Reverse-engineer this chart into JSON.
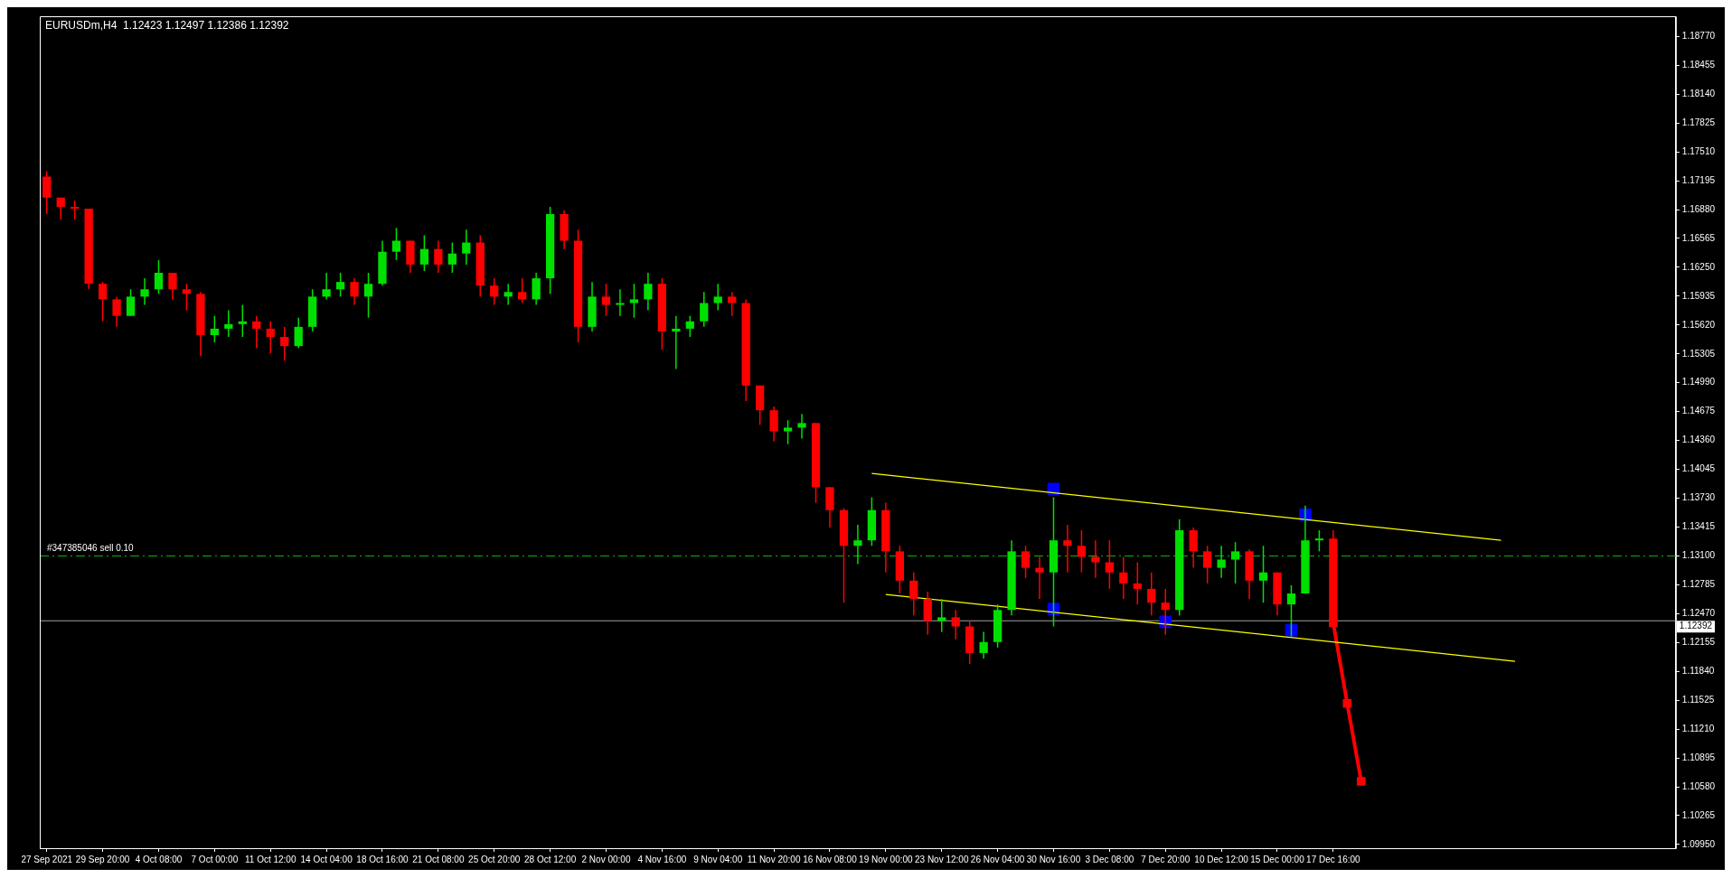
{
  "chart_data": {
    "type": "candlestick",
    "title": "EURUSDm,H4  1.12423 1.12497 1.12386 1.12392",
    "categories": [
      "27 Sep 2021",
      null,
      null,
      null,
      "29 Sep 20:00",
      null,
      null,
      null,
      "4 Oct 08:00",
      null,
      null,
      null,
      "7 Oct 00:00",
      null,
      null,
      null,
      "11 Oct 12:00",
      null,
      null,
      null,
      "14 Oct 04:00",
      null,
      null,
      null,
      "18 Oct 16:00",
      null,
      null,
      null,
      "21 Oct 08:00",
      null,
      null,
      null,
      "25 Oct 20:00",
      null,
      null,
      null,
      "28 Oct 12:00",
      null,
      null,
      null,
      "2 Nov 00:00",
      null,
      null,
      null,
      "4 Nov 16:00",
      null,
      null,
      null,
      "9 Nov 04:00",
      null,
      null,
      null,
      "11 Nov 20:00",
      null,
      null,
      null,
      "16 Nov 08:00",
      null,
      null,
      null,
      "19 Nov 00:00",
      null,
      null,
      null,
      "23 Nov 12:00",
      null,
      null,
      null,
      "26 Nov 04:00",
      null,
      null,
      null,
      "30 Nov 16:00",
      null,
      null,
      null,
      "3 Dec 08:00",
      null,
      null,
      null,
      "7 Dec 20:00",
      null,
      null,
      null,
      "10 Dec 12:00",
      null,
      null,
      null,
      "15 Dec 00:00",
      null,
      null,
      null,
      "17 Dec 16:00",
      null,
      null,
      null,
      null,
      null,
      null,
      null,
      null,
      null,
      null,
      null,
      null,
      null,
      null,
      null,
      null,
      null,
      null,
      null,
      null,
      null,
      null,
      null,
      null
    ],
    "ohlc": [
      [
        1.1724,
        1.173,
        1.1683,
        1.1701
      ],
      [
        1.1701,
        1.1701,
        1.1677,
        1.1691
      ],
      [
        1.1691,
        1.1698,
        1.1677,
        1.1689
      ],
      [
        1.1689,
        1.1689,
        1.1601,
        1.1607
      ],
      [
        1.1607,
        1.1609,
        1.1566,
        1.159
      ],
      [
        1.159,
        1.1593,
        1.156,
        1.1572
      ],
      [
        1.1572,
        1.1601,
        1.1572,
        1.1593
      ],
      [
        1.1593,
        1.1613,
        1.1584,
        1.1601
      ],
      [
        1.1601,
        1.1633,
        1.1596,
        1.1619
      ],
      [
        1.1619,
        1.1619,
        1.159,
        1.1601
      ],
      [
        1.1601,
        1.1607,
        1.1578,
        1.1596
      ],
      [
        1.1596,
        1.1598,
        1.1528,
        1.1551
      ],
      [
        1.1551,
        1.1572,
        1.1543,
        1.1558
      ],
      [
        1.1558,
        1.1578,
        1.1549,
        1.1563
      ],
      [
        1.1563,
        1.1584,
        1.1549,
        1.1566
      ],
      [
        1.1566,
        1.1572,
        1.1537,
        1.1558
      ],
      [
        1.1558,
        1.1566,
        1.1531,
        1.1549
      ],
      [
        1.1549,
        1.156,
        1.1523,
        1.1539
      ],
      [
        1.1539,
        1.157,
        1.1537,
        1.156
      ],
      [
        1.156,
        1.1601,
        1.1555,
        1.1593
      ],
      [
        1.1593,
        1.1619,
        1.159,
        1.1601
      ],
      [
        1.1601,
        1.1619,
        1.1593,
        1.1609
      ],
      [
        1.1609,
        1.1613,
        1.1584,
        1.1593
      ],
      [
        1.1593,
        1.1619,
        1.157,
        1.1607
      ],
      [
        1.1607,
        1.1654,
        1.1605,
        1.1642
      ],
      [
        1.1642,
        1.1668,
        1.1633,
        1.1654
      ],
      [
        1.1654,
        1.1654,
        1.1619,
        1.1628
      ],
      [
        1.1628,
        1.166,
        1.1621,
        1.1645
      ],
      [
        1.1645,
        1.1654,
        1.1619,
        1.1628
      ],
      [
        1.1628,
        1.1652,
        1.1619,
        1.164
      ],
      [
        1.164,
        1.1666,
        1.1628,
        1.1652
      ],
      [
        1.1652,
        1.166,
        1.1593,
        1.1605
      ],
      [
        1.1605,
        1.1613,
        1.1584,
        1.1593
      ],
      [
        1.1593,
        1.1607,
        1.1584,
        1.1598
      ],
      [
        1.1598,
        1.1613,
        1.1586,
        1.159
      ],
      [
        1.159,
        1.1619,
        1.1584,
        1.1613
      ],
      [
        1.1613,
        1.1691,
        1.1596,
        1.1683
      ],
      [
        1.1683,
        1.1687,
        1.1645,
        1.1654
      ],
      [
        1.1654,
        1.1666,
        1.1543,
        1.156
      ],
      [
        1.156,
        1.1609,
        1.1555,
        1.1593
      ],
      [
        1.1593,
        1.1607,
        1.1572,
        1.1584
      ],
      [
        1.1584,
        1.1601,
        1.1572,
        1.1586
      ],
      [
        1.1586,
        1.1607,
        1.157,
        1.159
      ],
      [
        1.159,
        1.1619,
        1.1578,
        1.1607
      ],
      [
        1.1607,
        1.1613,
        1.1535,
        1.1555
      ],
      [
        1.1555,
        1.1572,
        1.1514,
        1.1558
      ],
      [
        1.1558,
        1.1572,
        1.1549,
        1.1566
      ],
      [
        1.1566,
        1.1598,
        1.156,
        1.1586
      ],
      [
        1.1586,
        1.1607,
        1.1578,
        1.1593
      ],
      [
        1.1593,
        1.1598,
        1.1572,
        1.1586
      ],
      [
        1.1586,
        1.159,
        1.1479,
        1.1496
      ],
      [
        1.1496,
        1.1496,
        1.1453,
        1.1469
      ],
      [
        1.1469,
        1.1473,
        1.1435,
        1.1446
      ],
      [
        1.1446,
        1.1458,
        1.1432,
        1.145
      ],
      [
        1.145,
        1.1465,
        1.1438,
        1.1455
      ],
      [
        1.1455,
        1.1455,
        1.1368,
        1.1385
      ],
      [
        1.1385,
        1.1385,
        1.1341,
        1.136
      ],
      [
        1.136,
        1.1362,
        1.1259,
        1.1321
      ],
      [
        1.1321,
        1.1344,
        1.1301,
        1.1327
      ],
      [
        1.1327,
        1.1374,
        1.1321,
        1.136
      ],
      [
        1.136,
        1.1368,
        1.1292,
        1.1315
      ],
      [
        1.1315,
        1.1321,
        1.1269,
        1.1283
      ],
      [
        1.1283,
        1.1292,
        1.1245,
        1.1263
      ],
      [
        1.1263,
        1.1271,
        1.1224,
        1.1239
      ],
      [
        1.1239,
        1.1263,
        1.1227,
        1.1243
      ],
      [
        1.1243,
        1.1251,
        1.1219,
        1.1233
      ],
      [
        1.1233,
        1.1239,
        1.1192,
        1.1204
      ],
      [
        1.1204,
        1.1227,
        1.1198,
        1.1216
      ],
      [
        1.1216,
        1.1257,
        1.121,
        1.1251
      ],
      [
        1.1251,
        1.1327,
        1.1245,
        1.1315
      ],
      [
        1.1315,
        1.1321,
        1.1286,
        1.1297
      ],
      [
        1.1297,
        1.1309,
        1.1263,
        1.1292
      ],
      [
        1.1292,
        1.1374,
        1.1233,
        1.1327
      ],
      [
        1.1327,
        1.1344,
        1.1292,
        1.1321
      ],
      [
        1.1321,
        1.1338,
        1.1292,
        1.1309
      ],
      [
        1.1309,
        1.1327,
        1.1286,
        1.1303
      ],
      [
        1.1303,
        1.1327,
        1.1274,
        1.1292
      ],
      [
        1.1292,
        1.1309,
        1.1263,
        1.128
      ],
      [
        1.128,
        1.1303,
        1.1257,
        1.1274
      ],
      [
        1.1274,
        1.1292,
        1.1245,
        1.1259
      ],
      [
        1.1259,
        1.1274,
        1.1224,
        1.1251
      ],
      [
        1.1251,
        1.135,
        1.1245,
        1.1338
      ],
      [
        1.1338,
        1.1341,
        1.1297,
        1.1315
      ],
      [
        1.1315,
        1.1321,
        1.128,
        1.1297
      ],
      [
        1.1297,
        1.1321,
        1.1286,
        1.1306
      ],
      [
        1.1306,
        1.1325,
        1.128,
        1.1315
      ],
      [
        1.1315,
        1.1317,
        1.1263,
        1.1283
      ],
      [
        1.1283,
        1.1321,
        1.1259,
        1.1292
      ],
      [
        1.1292,
        1.1292,
        1.1245,
        1.1257
      ],
      [
        1.1257,
        1.1278,
        1.1222,
        1.1269
      ],
      [
        1.1269,
        1.1365,
        1.1269,
        1.1327
      ],
      [
        1.1327,
        1.1338,
        1.1315,
        1.1329
      ],
      [
        1.1329,
        1.1338,
        1.1237,
        1.1239
      ],
      null,
      null,
      null,
      null,
      null,
      null,
      null,
      null,
      null,
      null,
      null,
      null,
      null,
      null,
      null,
      null,
      null,
      null,
      null,
      null,
      null,
      null,
      null,
      null
    ],
    "colors": [
      "#ff0000",
      "#ff0000",
      "#ff0000",
      "#ff0000",
      "#ff0000",
      "#ff0000",
      "#00e000",
      "#00e000",
      "#00e000",
      "#ff0000",
      "#ff0000",
      "#ff0000",
      "#00e000",
      "#00e000",
      "#00e000",
      "#ff0000",
      "#ff0000",
      "#ff0000",
      "#00e000",
      "#00e000",
      "#00e000",
      "#00e000",
      "#ff0000",
      "#00e000",
      "#00e000",
      "#00e000",
      "#ff0000",
      "#00e000",
      "#ff0000",
      "#00e000",
      "#00e000",
      "#ff0000",
      "#ff0000",
      "#00e000",
      "#ff0000",
      "#00e000",
      "#00e000",
      "#ff0000",
      "#ff0000",
      "#00e000",
      "#ff0000",
      "#00e000",
      "#00e000",
      "#00e000",
      "#ff0000",
      "#00e000",
      "#00e000",
      "#00e000",
      "#00e000",
      "#ff0000",
      "#ff0000",
      "#ff0000",
      "#ff0000",
      "#00e000",
      "#00e000",
      "#ff0000",
      "#ff0000",
      "#ff0000",
      "#00e000",
      "#00e000",
      "#ff0000",
      "#ff0000",
      "#ff0000",
      "#ff0000",
      "#00e000",
      "#ff0000",
      "#ff0000",
      "#00e000",
      "#00e000",
      "#00e000",
      "#ff0000",
      "#ff0000",
      "#00e000",
      "#ff0000",
      "#ff0000",
      "#ff0000",
      "#ff0000",
      "#ff0000",
      "#ff0000",
      "#ff0000",
      "#ff0000",
      "#00e000",
      "#ff0000",
      "#ff0000",
      "#00e000",
      "#00e000",
      "#ff0000",
      "#00e000",
      "#ff0000",
      "#00e000",
      "#00e000",
      "#00e000",
      "#ff0000",
      null,
      null,
      null,
      null,
      null,
      null,
      null,
      null,
      null,
      null,
      null,
      null,
      null,
      null,
      null,
      null,
      null,
      null,
      null,
      null,
      null,
      null,
      null,
      null
    ],
    "ylim": [
      1.0991,
      1.1899
    ],
    "yticks": [
      {
        "value": 1.1877,
        "label": "1.18770"
      },
      {
        "value": 1.18455,
        "label": "1.18455"
      },
      {
        "value": 1.1814,
        "label": "1.18140"
      },
      {
        "value": 1.17825,
        "label": "1.17825"
      },
      {
        "value": 1.1751,
        "label": "1.17510"
      },
      {
        "value": 1.17195,
        "label": "1.17195"
      },
      {
        "value": 1.1688,
        "label": "1.16880"
      },
      {
        "value": 1.16565,
        "label": "1.16565"
      },
      {
        "value": 1.1625,
        "label": "1.16250"
      },
      {
        "value": 1.15935,
        "label": "1.15935"
      },
      {
        "value": 1.1562,
        "label": "1.15620"
      },
      {
        "value": 1.15305,
        "label": "1.15305"
      },
      {
        "value": 1.1499,
        "label": "1.14990"
      },
      {
        "value": 1.14675,
        "label": "1.14675"
      },
      {
        "value": 1.1436,
        "label": "1.14360"
      },
      {
        "value": 1.14045,
        "label": "1.14045"
      },
      {
        "value": 1.1373,
        "label": "1.13730"
      },
      {
        "value": 1.13415,
        "label": "1.13415"
      },
      {
        "value": 1.131,
        "label": "1.13100"
      },
      {
        "value": 1.12785,
        "label": "1.12785"
      },
      {
        "value": 1.1247,
        "label": "1.12470"
      },
      {
        "value": 1.12155,
        "label": "1.12155"
      },
      {
        "value": 1.1184,
        "label": "1.11840"
      },
      {
        "value": 1.11525,
        "label": "1.11525"
      },
      {
        "value": 1.1121,
        "label": "1.11210"
      },
      {
        "value": 1.10895,
        "label": "1.10895"
      },
      {
        "value": 1.1058,
        "label": "1.10580"
      },
      {
        "value": 1.10265,
        "label": "1.10265"
      },
      {
        "value": 1.0995,
        "label": "1.09950"
      }
    ],
    "series": [
      {
        "type": "line",
        "color": "#ffff00",
        "values": [
          null,
          null,
          null,
          null,
          null,
          null,
          null,
          null,
          null,
          null,
          null,
          null,
          null,
          null,
          null,
          null,
          null,
          null,
          null,
          null,
          null,
          null,
          null,
          null,
          null,
          null,
          null,
          null,
          null,
          null,
          null,
          null,
          null,
          null,
          null,
          null,
          null,
          null,
          null,
          null,
          null,
          null,
          null,
          null,
          null,
          null,
          null,
          null,
          null,
          null,
          null,
          null,
          null,
          null,
          null,
          null,
          null,
          null,
          null,
          1.14,
          null,
          null,
          null,
          null,
          null,
          null,
          null,
          null,
          null,
          null,
          null,
          null,
          null,
          null,
          null,
          null,
          null,
          null,
          null,
          null,
          null,
          null,
          null,
          null,
          null,
          null,
          null,
          null,
          null,
          null,
          null,
          null,
          null,
          null,
          null,
          null,
          null,
          null,
          null,
          null,
          null,
          null,
          null,
          null,
          1.1327,
          null,
          null,
          null,
          null,
          null,
          null,
          null,
          null,
          null,
          null,
          null,
          null
        ]
      },
      {
        "type": "line",
        "color": "#ffff00",
        "values": [
          null,
          null,
          null,
          null,
          null,
          null,
          null,
          null,
          null,
          null,
          null,
          null,
          null,
          null,
          null,
          null,
          null,
          null,
          null,
          null,
          null,
          null,
          null,
          null,
          null,
          null,
          null,
          null,
          null,
          null,
          null,
          null,
          null,
          null,
          null,
          null,
          null,
          null,
          null,
          null,
          null,
          null,
          null,
          null,
          null,
          null,
          null,
          null,
          null,
          null,
          null,
          null,
          null,
          null,
          null,
          null,
          null,
          null,
          null,
          null,
          1.1268,
          null,
          null,
          null,
          null,
          null,
          null,
          null,
          null,
          null,
          null,
          null,
          null,
          null,
          null,
          null,
          null,
          null,
          null,
          null,
          null,
          null,
          null,
          null,
          null,
          null,
          null,
          null,
          null,
          null,
          null,
          null,
          null,
          null,
          null,
          null,
          null,
          null,
          null,
          null,
          null,
          null,
          null,
          null,
          null,
          1.1195,
          null,
          null,
          null,
          null,
          null,
          null,
          null,
          null,
          null,
          null,
          null
        ]
      },
      {
        "type": "scatter",
        "color": "#0000ff",
        "marker": "square",
        "values": [
          null,
          null,
          null,
          null,
          null,
          null,
          null,
          null,
          null,
          null,
          null,
          null,
          null,
          null,
          null,
          null,
          null,
          null,
          null,
          null,
          null,
          null,
          null,
          null,
          null,
          null,
          null,
          null,
          null,
          null,
          null,
          null,
          null,
          null,
          null,
          null,
          null,
          null,
          null,
          null,
          null,
          null,
          null,
          null,
          null,
          null,
          null,
          null,
          null,
          null,
          null,
          null,
          null,
          null,
          null,
          null,
          null,
          null,
          null,
          null,
          null,
          null,
          null,
          null,
          null,
          null,
          null,
          null,
          null,
          null,
          null,
          null,
          1.1383,
          null,
          null,
          null,
          null,
          null,
          null,
          null,
          null,
          null,
          null,
          null,
          null,
          null,
          null,
          null,
          null,
          null,
          1.1355,
          null,
          null,
          null,
          null,
          null,
          null,
          null,
          null,
          null,
          null,
          null,
          null,
          null,
          null,
          null,
          null,
          null,
          null,
          null,
          null,
          null,
          null,
          null,
          null,
          null,
          null
        ]
      },
      {
        "type": "scatter",
        "color": "#0000ff",
        "marker": "square",
        "values": [
          null,
          null,
          null,
          null,
          null,
          null,
          null,
          null,
          null,
          null,
          null,
          null,
          null,
          null,
          null,
          null,
          null,
          null,
          null,
          null,
          null,
          null,
          null,
          null,
          null,
          null,
          null,
          null,
          null,
          null,
          null,
          null,
          null,
          null,
          null,
          null,
          null,
          null,
          null,
          null,
          null,
          null,
          null,
          null,
          null,
          null,
          null,
          null,
          null,
          null,
          null,
          null,
          null,
          null,
          null,
          null,
          null,
          null,
          null,
          null,
          null,
          null,
          null,
          null,
          null,
          null,
          null,
          null,
          null,
          null,
          null,
          null,
          1.1252,
          null,
          null,
          null,
          null,
          null,
          null,
          null,
          1.1238,
          null,
          null,
          null,
          null,
          null,
          null,
          null,
          null,
          1.1229,
          null,
          null,
          null,
          null,
          null,
          null,
          null,
          null,
          null,
          null,
          null,
          null,
          null,
          null,
          null,
          null,
          null,
          null,
          null,
          null,
          null,
          null,
          null,
          null,
          null,
          null,
          null
        ]
      },
      {
        "type": "line",
        "color": "#ff0000",
        "marker": "square",
        "values": [
          null,
          null,
          null,
          null,
          null,
          null,
          null,
          null,
          null,
          null,
          null,
          null,
          null,
          null,
          null,
          null,
          null,
          null,
          null,
          null,
          null,
          null,
          null,
          null,
          null,
          null,
          null,
          null,
          null,
          null,
          null,
          null,
          null,
          null,
          null,
          null,
          null,
          null,
          null,
          null,
          null,
          null,
          null,
          null,
          null,
          null,
          null,
          null,
          null,
          null,
          null,
          null,
          null,
          null,
          null,
          null,
          null,
          null,
          null,
          null,
          null,
          null,
          null,
          null,
          null,
          null,
          null,
          null,
          null,
          null,
          null,
          null,
          null,
          null,
          null,
          null,
          null,
          null,
          null,
          null,
          null,
          null,
          null,
          null,
          null,
          null,
          null,
          null,
          null,
          null,
          null,
          null,
          1.1237,
          1.1149,
          1.1064,
          null,
          null,
          null,
          null,
          null,
          null,
          null,
          null,
          null,
          null,
          null,
          null,
          null,
          null,
          null,
          null,
          null,
          null,
          null,
          null,
          null,
          null
        ]
      }
    ],
    "ref_lines": [
      {
        "axis": "y",
        "value": 1.131,
        "label": "#347385046 sell 0.10",
        "color": "#00c000",
        "line_style": "dashed"
      },
      {
        "axis": "y",
        "value": 1.12392,
        "label": "1.12392",
        "color": "#a0a0a0",
        "line_style": "solid"
      }
    ]
  }
}
